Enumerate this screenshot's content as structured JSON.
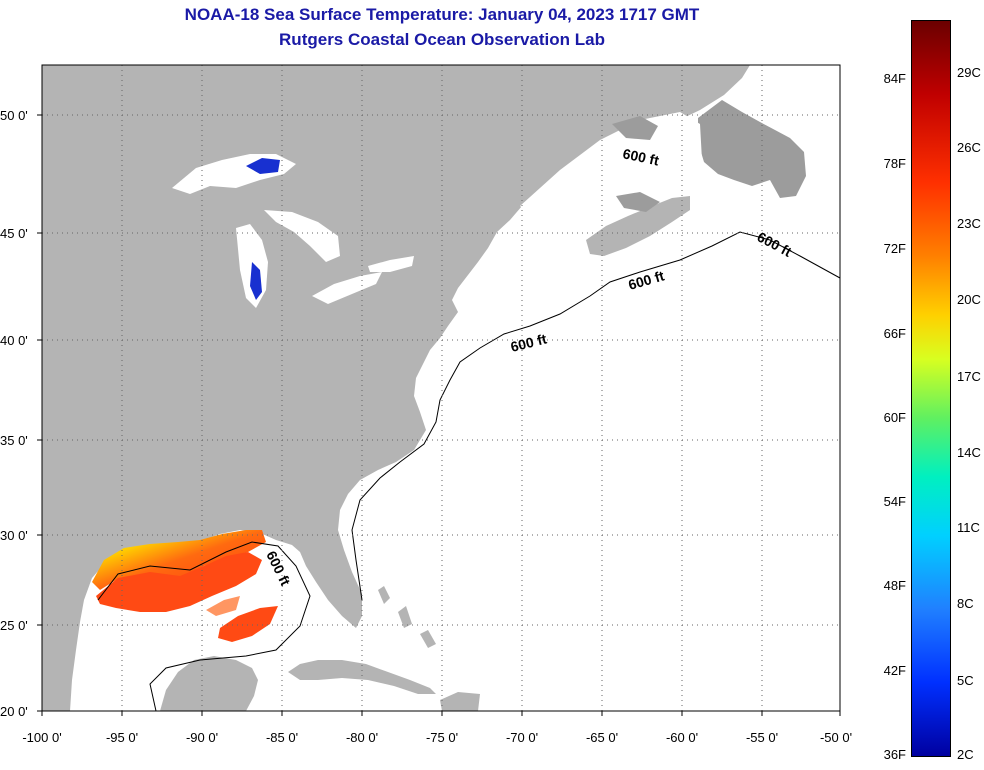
{
  "header": {
    "title": "NOAA-18 Sea Surface Temperature:  January 04, 2023 1717 GMT",
    "subtitle": "Rutgers Coastal Ocean Observation Lab"
  },
  "map": {
    "lat_labels": [
      "50 0'",
      "45 0'",
      "40 0'",
      "35 0'",
      "30 0'",
      "25 0'",
      "20 0'"
    ],
    "lon_labels": [
      "-100 0'",
      "-95 0'",
      "-90 0'",
      "-85 0'",
      "-80 0'",
      "-75 0'",
      "-70 0'",
      "-65 0'",
      "-60 0'",
      "-55 0'",
      "-50 0'"
    ],
    "contour_label": "600 ft",
    "land_color": "#b4b4b4",
    "ocean_color": "#ffffff",
    "grid": "dotted"
  },
  "colorbar": {
    "f_ticks": [
      "84F",
      "78F",
      "72F",
      "66F",
      "60F",
      "54F",
      "48F",
      "42F",
      "36F"
    ],
    "c_ticks": [
      "29C",
      "26C",
      "23C",
      "20C",
      "17C",
      "14C",
      "11C",
      "8C",
      "5C",
      "2C"
    ],
    "colors": [
      "#6b0000",
      "#c00000",
      "#ff3000",
      "#ff8000",
      "#ffd000",
      "#d8ff20",
      "#60f060",
      "#00f0c0",
      "#00d0ff",
      "#2080ff",
      "#0030ff",
      "#0000a0"
    ]
  }
}
